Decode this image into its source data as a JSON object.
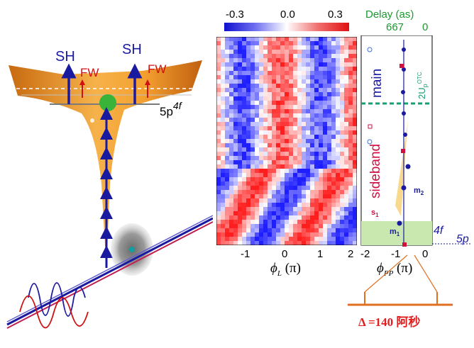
{
  "left_panel": {
    "sh_label_1": "SH",
    "sh_label_2": "SH",
    "fw_label_1": "FW",
    "fw_label_2": "FW",
    "level_label": "5p",
    "level_sup": "4f"
  },
  "colorbar": {
    "ticks": [
      "-0.3",
      "0.0",
      "0.3"
    ],
    "min": -0.3,
    "max": 0.3
  },
  "heatmap": {
    "x_ticks": [
      "-1",
      "0",
      "1",
      "2"
    ],
    "x_label_phi": "ϕ",
    "x_label_sub": "L",
    "x_label_unit": "(π)"
  },
  "delay_panel": {
    "title": "Delay (as)",
    "top_left": "667",
    "top_right": "0",
    "label_main": "main",
    "label_sideband": "sideband",
    "label_2up": "2U",
    "label_2up_sub": "p",
    "label_2up_sup": "OTC",
    "m1": "m",
    "m1_sub": "1",
    "m2": "m",
    "m2_sub": "2",
    "s1": "s",
    "s1_sub": "1",
    "x_ticks": [
      "-2",
      "-1",
      "0"
    ],
    "x_label_phi": "ϕ",
    "x_label_sub": "PP",
    "x_label_unit": "(π)",
    "side_label_4f": "4f",
    "side_label_5p": "5p"
  },
  "annotation": {
    "text": "Δ =140 阿秒"
  },
  "colors": {
    "orange_surface": "#f0a030",
    "blue_arrow": "#1a1aa0",
    "red_arrow": "#d01010",
    "green_text": "#1a9a30",
    "annotation_red": "#e02020",
    "bracket_orange": "#e07020"
  }
}
